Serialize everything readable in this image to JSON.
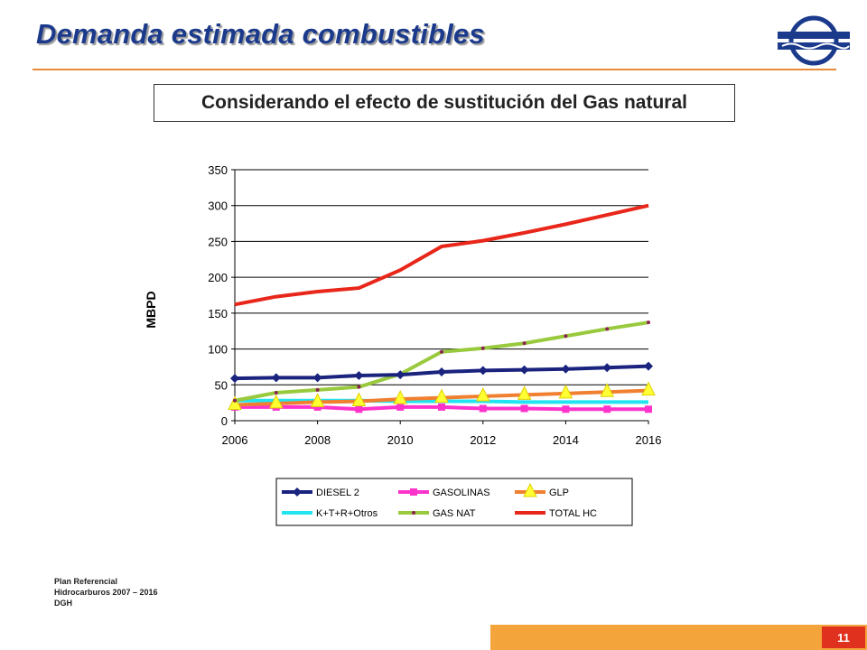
{
  "header": {
    "title": "Demanda estimada combustibles",
    "subtitle": "Considerando el efecto de sustitución del Gas natural"
  },
  "footer": {
    "source_lines": [
      "Plan Referencial",
      "Hidrocarburos 2007 – 2016",
      "DGH"
    ],
    "page_number": "11"
  },
  "colors": {
    "title": "#1b3a8c",
    "rule": "#e88a3a",
    "footer_bar": "#f3a43a",
    "page_box": "#e0311f"
  },
  "chart_data": {
    "type": "line",
    "ylabel": "MBPD",
    "xlabel": "",
    "ylim": [
      0,
      350
    ],
    "xlim": [
      2006,
      2016
    ],
    "yticks": [
      0,
      50,
      100,
      150,
      200,
      250,
      300,
      350
    ],
    "xticks": [
      2006,
      2008,
      2010,
      2012,
      2014,
      2016
    ],
    "grid": "horizontal",
    "legend_position": "bottom",
    "x": [
      2006,
      2007,
      2008,
      2009,
      2010,
      2011,
      2012,
      2013,
      2014,
      2015,
      2016
    ],
    "series": [
      {
        "name": "DIESEL 2",
        "color": "#1a237e",
        "marker": "diamond",
        "values": [
          59,
          60,
          60,
          63,
          64,
          68,
          70,
          71,
          72,
          74,
          76
        ]
      },
      {
        "name": "GASOLINAS",
        "color": "#ff33cc",
        "marker": "square",
        "values": [
          19,
          19,
          19,
          16,
          19,
          19,
          17,
          17,
          16,
          16,
          16
        ]
      },
      {
        "name": "GLP",
        "color": "#f07f30",
        "marker": "triangle",
        "values": [
          22,
          24,
          26,
          27,
          30,
          32,
          34,
          36,
          38,
          40,
          42
        ]
      },
      {
        "name": "K+T+R+Otros",
        "color": "#22e3f0",
        "marker": "none",
        "values": [
          28,
          28,
          28,
          28,
          27,
          27,
          27,
          26,
          26,
          26,
          26
        ]
      },
      {
        "name": "GAS NAT",
        "color": "#99c93c",
        "marker": "dot",
        "values": [
          28,
          39,
          43,
          47,
          65,
          96,
          101,
          108,
          118,
          128,
          137
        ]
      },
      {
        "name": "TOTAL HC",
        "color": "#e8261a",
        "marker": "none",
        "values": [
          162,
          173,
          180,
          185,
          210,
          243,
          251,
          262,
          274,
          287,
          300
        ]
      }
    ]
  }
}
